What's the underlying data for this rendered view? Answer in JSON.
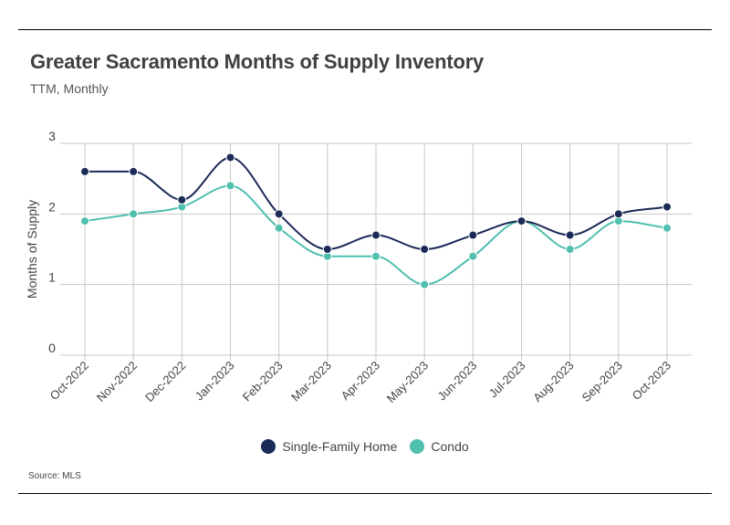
{
  "header": {
    "title": "Greater Sacramento Months of Supply Inventory",
    "subtitle": "TTM, Monthly"
  },
  "footer": {
    "source": "Source: MLS"
  },
  "chart_data": {
    "type": "line",
    "title": "Greater Sacramento Months of Supply Inventory",
    "subtitle": "TTM, Monthly",
    "xlabel": "",
    "ylabel": "Months of Supply",
    "ylim": [
      0,
      3
    ],
    "yticks": [
      0,
      1,
      2,
      3
    ],
    "grid": true,
    "legend_position": "bottom",
    "categories": [
      "Oct-2022",
      "Nov-2022",
      "Dec-2022",
      "Jan-2023",
      "Feb-2023",
      "Mar-2023",
      "Apr-2023",
      "May-2023",
      "Jun-2023",
      "Jul-2023",
      "Aug-2023",
      "Sep-2023",
      "Oct-2023"
    ],
    "series": [
      {
        "name": "Single-Family Home",
        "color": "#1b2a57",
        "values": [
          2.6,
          2.6,
          2.2,
          2.8,
          2.0,
          1.5,
          1.7,
          1.5,
          1.7,
          1.9,
          1.7,
          2.0,
          2.1
        ]
      },
      {
        "name": "Condo",
        "color": "#4fbfae",
        "values": [
          1.9,
          2.0,
          2.1,
          2.4,
          1.8,
          1.4,
          1.4,
          1.0,
          1.4,
          1.9,
          1.5,
          1.9,
          1.8
        ]
      }
    ]
  }
}
